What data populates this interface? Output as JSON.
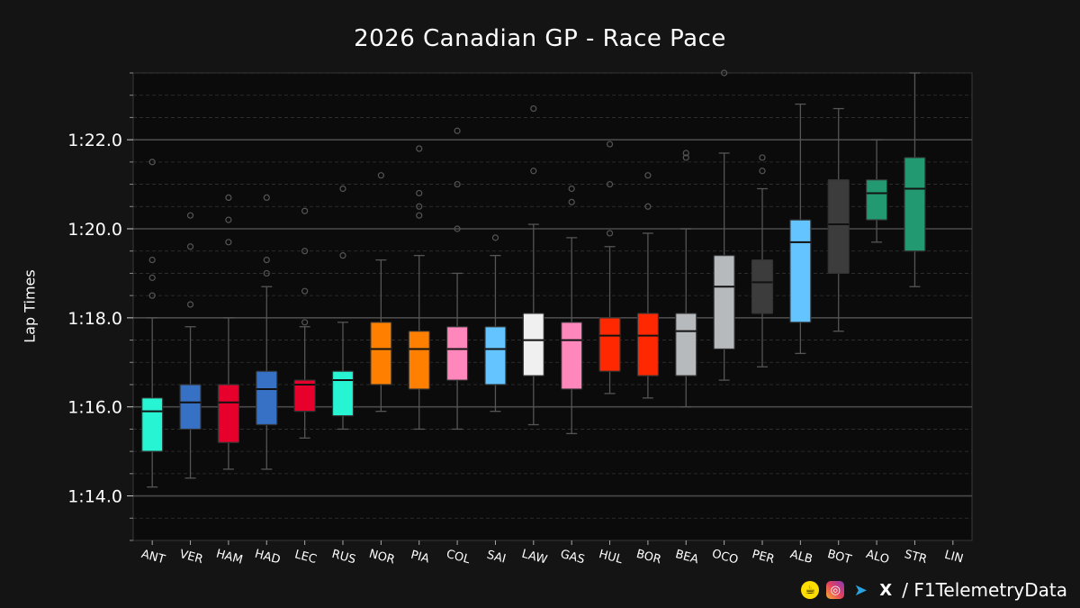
{
  "title": "2026 Canadian GP - Race Pace",
  "ylabel": "Lap Times",
  "watermark": "@F1TelemetryData",
  "footer": {
    "handle": "/ F1TelemetryData",
    "icons": [
      "buymeacoffee-icon",
      "instagram-icon",
      "telegram-icon",
      "x-icon"
    ]
  },
  "chart_data": {
    "type": "box",
    "unit": "seconds",
    "ylim": [
      73,
      83.5
    ],
    "yticks": [
      {
        "value": 74,
        "label": "1:14.0"
      },
      {
        "value": 76,
        "label": "1:16.0"
      },
      {
        "value": 78,
        "label": "1:18.0"
      },
      {
        "value": 80,
        "label": "1:20.0"
      },
      {
        "value": 82,
        "label": "1:22.0"
      }
    ],
    "grid": true,
    "drivers": [
      {
        "name": "ANT",
        "color": "#27F4D2",
        "whislo": 74.2,
        "q1": 75.0,
        "med": 75.9,
        "q3": 76.2,
        "whishi": 78.0,
        "fliers": [
          78.5,
          78.9,
          79.3,
          81.5
        ]
      },
      {
        "name": "VER",
        "color": "#3671C6",
        "whislo": 74.4,
        "q1": 75.5,
        "med": 76.1,
        "q3": 76.5,
        "whishi": 77.8,
        "fliers": [
          78.3,
          79.6,
          80.3
        ]
      },
      {
        "name": "HAM",
        "color": "#E8002D",
        "whislo": 74.6,
        "q1": 75.2,
        "med": 76.1,
        "q3": 76.5,
        "whishi": 78.0,
        "fliers": [
          79.7,
          80.2,
          80.7
        ]
      },
      {
        "name": "HAD",
        "color": "#3671C6",
        "whislo": 74.6,
        "q1": 75.6,
        "med": 76.4,
        "q3": 76.8,
        "whishi": 78.7,
        "fliers": [
          79.0,
          79.3,
          80.7
        ]
      },
      {
        "name": "LEC",
        "color": "#E8002D",
        "whislo": 75.3,
        "q1": 75.9,
        "med": 76.5,
        "q3": 76.6,
        "whishi": 77.8,
        "fliers": [
          77.9,
          78.6,
          79.5,
          80.4
        ]
      },
      {
        "name": "RUS",
        "color": "#27F4D2",
        "whislo": 75.5,
        "q1": 75.8,
        "med": 76.6,
        "q3": 76.8,
        "whishi": 77.9,
        "fliers": [
          79.4,
          80.9
        ]
      },
      {
        "name": "NOR",
        "color": "#FF8000",
        "whislo": 75.9,
        "q1": 76.5,
        "med": 77.3,
        "q3": 77.9,
        "whishi": 79.3,
        "fliers": [
          81.2
        ]
      },
      {
        "name": "PIA",
        "color": "#FF8000",
        "whislo": 75.5,
        "q1": 76.4,
        "med": 77.3,
        "q3": 77.7,
        "whishi": 79.4,
        "fliers": [
          80.3,
          80.5,
          80.8,
          81.8
        ]
      },
      {
        "name": "COL",
        "color": "#FF87BC",
        "whislo": 75.5,
        "q1": 76.6,
        "med": 77.3,
        "q3": 77.8,
        "whishi": 79.0,
        "fliers": [
          80.0,
          81.0,
          82.2
        ]
      },
      {
        "name": "SAI",
        "color": "#64C4FF",
        "whislo": 75.9,
        "q1": 76.5,
        "med": 77.3,
        "q3": 77.8,
        "whishi": 79.4,
        "fliers": [
          79.8
        ]
      },
      {
        "name": "LAW",
        "color": "#F0F0F0",
        "whislo": 75.6,
        "q1": 76.7,
        "med": 77.5,
        "q3": 78.1,
        "whishi": 80.1,
        "fliers": [
          81.3,
          82.7
        ]
      },
      {
        "name": "GAS",
        "color": "#FF87BC",
        "whislo": 75.4,
        "q1": 76.4,
        "med": 77.5,
        "q3": 77.9,
        "whishi": 79.8,
        "fliers": [
          80.6,
          80.9
        ]
      },
      {
        "name": "HUL",
        "color": "#FF2800",
        "whislo": 76.3,
        "q1": 76.8,
        "med": 77.6,
        "q3": 78.0,
        "whishi": 79.6,
        "fliers": [
          79.9,
          81.0,
          81.9
        ]
      },
      {
        "name": "BOR",
        "color": "#FF2800",
        "whislo": 76.2,
        "q1": 76.7,
        "med": 77.6,
        "q3": 78.1,
        "whishi": 79.9,
        "fliers": [
          80.5,
          81.2
        ]
      },
      {
        "name": "BEA",
        "color": "#B6BABD",
        "whislo": 76.0,
        "q1": 76.7,
        "med": 77.7,
        "q3": 78.1,
        "whishi": 80.0,
        "fliers": [
          81.6,
          81.7
        ]
      },
      {
        "name": "OCO",
        "color": "#B6BABD",
        "whislo": 76.6,
        "q1": 77.3,
        "med": 78.7,
        "q3": 79.4,
        "whishi": 81.7,
        "fliers": [
          83.5
        ]
      },
      {
        "name": "PER",
        "color": "#3C3C3C",
        "whislo": 76.9,
        "q1": 78.1,
        "med": 78.8,
        "q3": 79.3,
        "whishi": 80.9,
        "fliers": [
          81.3,
          81.6
        ]
      },
      {
        "name": "ALB",
        "color": "#64C4FF",
        "whislo": 77.2,
        "q1": 77.9,
        "med": 79.7,
        "q3": 80.2,
        "whishi": 82.8,
        "fliers": []
      },
      {
        "name": "BOT",
        "color": "#3C3C3C",
        "whislo": 77.7,
        "q1": 79.0,
        "med": 80.1,
        "q3": 81.1,
        "whishi": 82.7,
        "fliers": []
      },
      {
        "name": "ALO",
        "color": "#229971",
        "whislo": 79.7,
        "q1": 80.2,
        "med": 80.8,
        "q3": 81.1,
        "whishi": 82.0,
        "fliers": []
      },
      {
        "name": "STR",
        "color": "#229971",
        "whislo": 78.7,
        "q1": 79.5,
        "med": 80.9,
        "q3": 81.6,
        "whishi": 83.5,
        "fliers": []
      },
      {
        "name": "LIN",
        "color": "#ffffff",
        "whislo": null,
        "q1": null,
        "med": null,
        "q3": null,
        "whishi": null,
        "fliers": []
      }
    ]
  }
}
